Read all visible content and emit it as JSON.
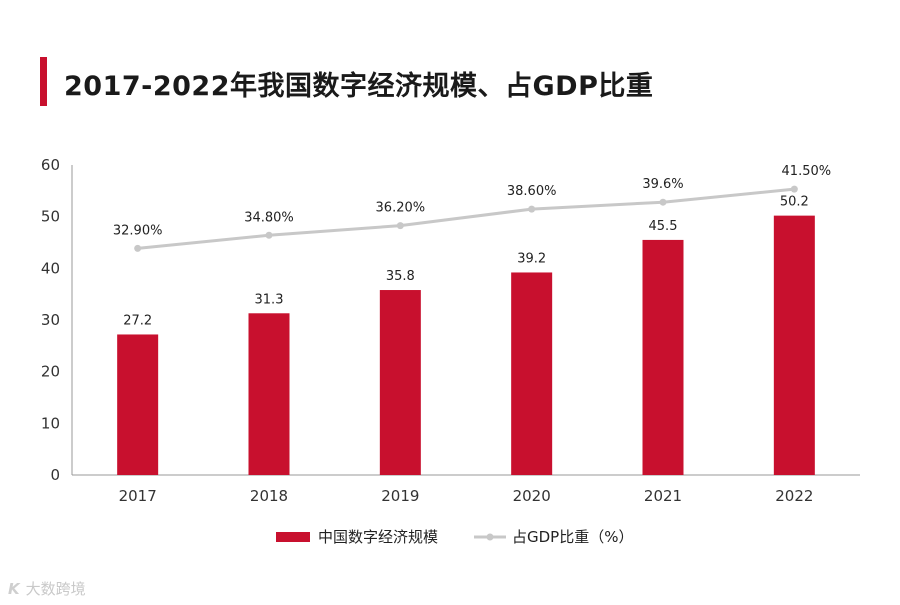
{
  "chart_data": {
    "type": "bar+line",
    "title": "2017-2022年我国数字经济规模、占GDP比重",
    "categories": [
      "2017",
      "2018",
      "2019",
      "2020",
      "2021",
      "2022"
    ],
    "series": [
      {
        "name": "中国数字经济规模",
        "type": "bar",
        "values": [
          27.2,
          31.3,
          35.8,
          39.2,
          45.5,
          50.2
        ],
        "labels": [
          "27.2",
          "31.3",
          "35.8",
          "39.2",
          "45.5",
          "50.2"
        ],
        "color": "#c8102e"
      },
      {
        "name": "占GDP比重（%）",
        "type": "line",
        "values": [
          32.9,
          34.8,
          36.2,
          38.6,
          39.6,
          41.5
        ],
        "labels": [
          "32.90%",
          "34.80%",
          "36.20%",
          "38.60%",
          "39.6%",
          "41.50%"
        ],
        "color": "#c8c8c8"
      }
    ],
    "y_ticks": [
      "0",
      "10",
      "20",
      "30",
      "40",
      "50",
      "60"
    ],
    "ylim": [
      0,
      60
    ],
    "line_ylim": [
      0,
      45
    ],
    "legend_position": "bottom-center",
    "grid": false
  },
  "watermark": {
    "icon": "K",
    "text": "大数跨境"
  }
}
